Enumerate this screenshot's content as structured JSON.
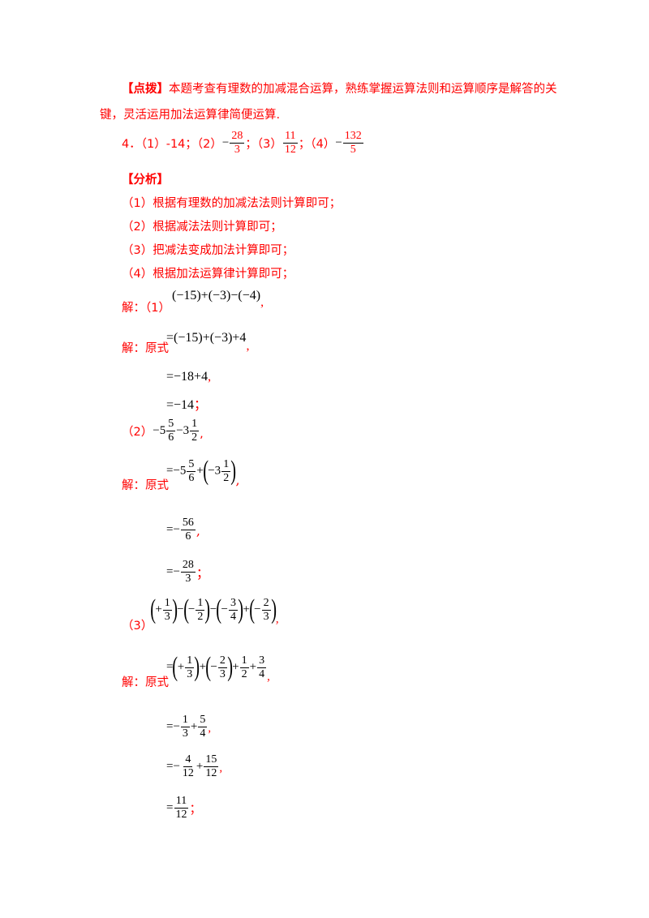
{
  "tip": {
    "label": "【点拨】",
    "line1": "本题考查有理数的加减混合运算，熟练掌握运算法则和运算顺序是解答的关",
    "line2": "键，灵活运用加法运算律简便运算."
  },
  "answer": {
    "num": "4．",
    "p1": "（1）-14；（2）",
    "neg1": "−",
    "f1n": "28",
    "f1d": "3",
    "sep1": "；（3）",
    "f2n": "11",
    "f2d": "12",
    "sep2": "；（4）",
    "neg2": "−",
    "f3n": "132",
    "f3d": "5"
  },
  "analysis": {
    "label": "【分析】",
    "items": [
      "（1）根据有理数的加减法法则计算即可；",
      "（2）根据减法法则计算即可；",
      "（3）把减法变成加法计算即可；",
      "（4）根据加法运算律计算即可；"
    ]
  },
  "sol1": {
    "head": "解：（1）",
    "expr": "(−15)+(−3)−(−4)",
    "comma": ",",
    "label": "解：原式",
    "s1": "=(−15)+(−3)+4",
    "s1p": ",",
    "s2": "=−18+4",
    "s2p": ",",
    "s3": "=−14",
    "s3p": "；"
  },
  "sol2": {
    "head": "（2）",
    "e_a": "−5",
    "e_an": "5",
    "e_ad": "6",
    "e_b": "−3",
    "e_bn": "1",
    "e_bd": "2",
    "e_p": ",",
    "label": "解：原式",
    "s1_a": "=−5",
    "s1_an": "5",
    "s1_ad": "6",
    "s1_plus": "+",
    "s1_b": "−3",
    "s1_bn": "1",
    "s1_bd": "2",
    "s1_p": ",",
    "s2_pre": "=−",
    "s2_n": "56",
    "s2_d": "6",
    "s2_p": ",",
    "s3_pre": "=−",
    "s3_n": "28",
    "s3_d": "3",
    "s3_p": "；"
  },
  "sol3": {
    "head": "（3）",
    "label": "解：原式",
    "e1n": "1",
    "e1d": "3",
    "e2n": "1",
    "e2d": "2",
    "e3n": "3",
    "e3d": "4",
    "e4n": "2",
    "e4d": "3",
    "e_p": ",",
    "s1_an": "1",
    "s1_ad": "3",
    "s1_bn": "2",
    "s1_bd": "3",
    "s1_cn": "1",
    "s1_cd": "2",
    "s1_dn": "3",
    "s1_dd": "4",
    "s1_p": ",",
    "s2_an": "1",
    "s2_ad": "3",
    "s2_bn": "5",
    "s2_bd": "4",
    "s2_p": ",",
    "s3_an": "4",
    "s3_ad": "12",
    "s3_bn": "15",
    "s3_bd": "12",
    "s3_p": ",",
    "s4_n": "11",
    "s4_d": "12",
    "s4_p": "；"
  }
}
